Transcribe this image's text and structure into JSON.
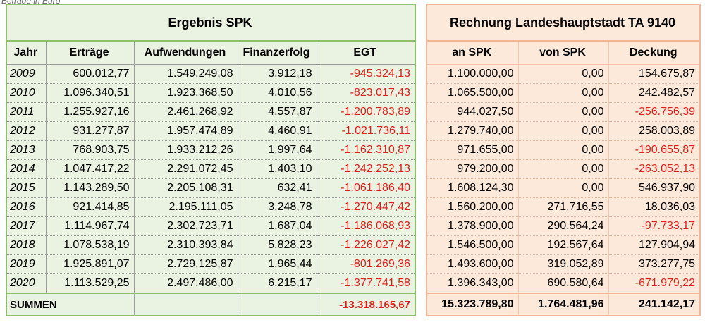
{
  "caption": "Beträge in Euro",
  "left": {
    "title": "Ergebnis  SPK",
    "headers": [
      "Jahr",
      "Erträge",
      "Aufwendungen",
      "Finanzerfolg",
      "EGT"
    ],
    "rows": [
      {
        "jahr": "2009",
        "ertraege": "600.012,77",
        "aufwendungen": "1.549.249,08",
        "finanzerfolg": "3.912,18",
        "egt": "-945.324,13"
      },
      {
        "jahr": "2010",
        "ertraege": "1.096.340,51",
        "aufwendungen": "1.923.368,50",
        "finanzerfolg": "4.010,56",
        "egt": "-823.017,43"
      },
      {
        "jahr": "2011",
        "ertraege": "1.255.927,16",
        "aufwendungen": "2.461.268,92",
        "finanzerfolg": "4.557,87",
        "egt": "-1.200.783,89"
      },
      {
        "jahr": "2012",
        "ertraege": "931.277,87",
        "aufwendungen": "1.957.474,89",
        "finanzerfolg": "4.460,91",
        "egt": "-1.021.736,11"
      },
      {
        "jahr": "2013",
        "ertraege": "768.903,75",
        "aufwendungen": "1.933.212,26",
        "finanzerfolg": "1.997,64",
        "egt": "-1.162.310,87"
      },
      {
        "jahr": "2014",
        "ertraege": "1.047.417,22",
        "aufwendungen": "2.291.072,45",
        "finanzerfolg": "1.403,10",
        "egt": "-1.242.252,13"
      },
      {
        "jahr": "2015",
        "ertraege": "1.143.289,50",
        "aufwendungen": "2.205.108,31",
        "finanzerfolg": "632,41",
        "egt": "-1.061.186,40"
      },
      {
        "jahr": "2016",
        "ertraege": "921.414,85",
        "aufwendungen": "2.195.111,05",
        "finanzerfolg": "3.248,78",
        "egt": "-1.270.447,42"
      },
      {
        "jahr": "2017",
        "ertraege": "1.114.967,74",
        "aufwendungen": "2.302.723,71",
        "finanzerfolg": "1.687,04",
        "egt": "-1.186.068,93"
      },
      {
        "jahr": "2018",
        "ertraege": "1.078.538,19",
        "aufwendungen": "2.310.393,84",
        "finanzerfolg": "5.828,23",
        "egt": "-1.226.027,42"
      },
      {
        "jahr": "2019",
        "ertraege": "1.925.891,07",
        "aufwendungen": "2.729.125,87",
        "finanzerfolg": "1.965,44",
        "egt": "-801.269,36"
      },
      {
        "jahr": "2020",
        "ertraege": "1.113.529,25",
        "aufwendungen": "2.497.486,00",
        "finanzerfolg": "6.215,17",
        "egt": "-1.377.741,58"
      }
    ],
    "sum_label": "SUMMEN",
    "sum_egt": "-13.318.165,67"
  },
  "right": {
    "title": "Rechnung Landeshauptstadt TA 9140",
    "headers": [
      "an SPK",
      "von SPK",
      "Deckung"
    ],
    "rows": [
      {
        "an": "1.100.000,00",
        "von": "0,00",
        "deckung": "154.675,87"
      },
      {
        "an": "1.065.500,00",
        "von": "0,00",
        "deckung": "242.482,57"
      },
      {
        "an": "944.027,50",
        "von": "0,00",
        "deckung": "-256.756,39"
      },
      {
        "an": "1.279.740,00",
        "von": "0,00",
        "deckung": "258.003,89"
      },
      {
        "an": "971.655,00",
        "von": "0,00",
        "deckung": "-190.655,87"
      },
      {
        "an": "979.200,00",
        "von": "0,00",
        "deckung": "-263.052,13"
      },
      {
        "an": "1.608.124,30",
        "von": "0,00",
        "deckung": "546.937,90"
      },
      {
        "an": "1.560.200,00",
        "von": "271.716,55",
        "deckung": "18.036,03"
      },
      {
        "an": "1.378.900,00",
        "von": "290.564,24",
        "deckung": "-97.733,17"
      },
      {
        "an": "1.546.500,00",
        "von": "192.567,64",
        "deckung": "127.904,94"
      },
      {
        "an": "1.493.600,00",
        "von": "319.052,89",
        "deckung": "373.277,75"
      },
      {
        "an": "1.396.343,00",
        "von": "690.580,64",
        "deckung": "-671.979,22"
      }
    ],
    "sum_an": "15.323.789,80",
    "sum_von": "1.764.481,96",
    "sum_deckung": "241.142,17"
  },
  "colors": {
    "negative": "#e0201b",
    "left_bg": "#eaf2e1",
    "left_border": "#8fbf6a",
    "right_bg": "#fde9d9",
    "right_border": "#f3b596"
  }
}
